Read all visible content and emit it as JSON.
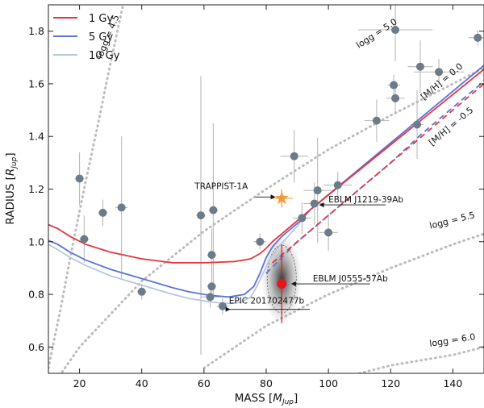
{
  "chart_data": {
    "type": "scatter",
    "xlabel": "MASS [",
    "xlabel_unit": "M",
    "xlabel_sub": "Jup",
    "xlabel_end": "]",
    "ylabel": "RADIUS [",
    "ylabel_unit": "R",
    "ylabel_sub": "Jup",
    "ylabel_end": "]",
    "xlim": [
      10,
      150
    ],
    "ylim": [
      0.5,
      1.9
    ],
    "xticks": [
      20,
      40,
      60,
      80,
      100,
      120,
      140
    ],
    "yticks": [
      0.6,
      0.8,
      1.0,
      1.2,
      1.4,
      1.6,
      1.8
    ],
    "legend": [
      {
        "label": "1 Gy",
        "color": "#e8353d"
      },
      {
        "label": "5 Gy",
        "color": "#5b73d6"
      },
      {
        "label": "10 Gy",
        "color": "#b8c6dc"
      }
    ],
    "colors": {
      "point": "#6b7b88",
      "error_bar": "#b9b9b9",
      "logg": "#bdbdbd",
      "trappist": "#f39a3c",
      "eblm_j0555": "#e8151b"
    },
    "isochrones": [
      {
        "name": "1 Gy",
        "color": "#e8353d",
        "x": [
          10,
          13,
          17,
          22,
          30,
          40,
          50,
          60,
          70,
          75,
          78,
          80,
          82,
          85,
          88,
          91,
          94
        ],
        "y": [
          1.065,
          1.05,
          1.02,
          0.99,
          0.96,
          0.935,
          0.92,
          0.92,
          0.925,
          0.935,
          0.955,
          0.975,
          1.0,
          1.03,
          1.06,
          1.09,
          1.12
        ]
      },
      {
        "name": "5 Gy",
        "color": "#5b73d6",
        "x": [
          10,
          13,
          17,
          22,
          30,
          40,
          50,
          55,
          60,
          63,
          68,
          73,
          76,
          78,
          80,
          82,
          85,
          88,
          91,
          94
        ],
        "y": [
          1.005,
          0.99,
          0.96,
          0.93,
          0.895,
          0.86,
          0.825,
          0.81,
          0.8,
          0.795,
          0.79,
          0.8,
          0.83,
          0.88,
          0.94,
          0.98,
          1.02,
          1.05,
          1.08,
          1.12
        ]
      },
      {
        "name": "10 Gy",
        "color": "#b8c6dc",
        "x": [
          10,
          13,
          17,
          22,
          30,
          40,
          50,
          55,
          60,
          63,
          68,
          72,
          75,
          77,
          79,
          81,
          84,
          87,
          90,
          94
        ],
        "y": [
          0.99,
          0.97,
          0.94,
          0.91,
          0.87,
          0.835,
          0.8,
          0.785,
          0.775,
          0.77,
          0.765,
          0.77,
          0.79,
          0.83,
          0.88,
          0.93,
          0.98,
          1.02,
          1.06,
          1.12
        ]
      }
    ],
    "metallicity_tracks": [
      {
        "label": "[M/H] = 0.0",
        "color": "#5b73d6",
        "dashed": false,
        "x": [
          94,
          150
        ],
        "y": [
          1.12,
          1.67
        ]
      },
      {
        "label": "[M/H] = 0.0",
        "color": "#e8353d",
        "dashed": false,
        "x": [
          94,
          150
        ],
        "y": [
          1.12,
          1.655
        ]
      },
      {
        "label": "[M/H] = -0.5",
        "color": "#5b73d6",
        "dashed": true,
        "x": [
          80,
          90,
          100,
          110,
          120,
          130,
          140,
          150
        ],
        "y": [
          0.88,
          1.0,
          1.1,
          1.2,
          1.3,
          1.41,
          1.51,
          1.61
        ]
      },
      {
        "label": "[M/H] = -0.5",
        "color": "#e8353d",
        "dashed": true,
        "x": [
          82,
          90,
          100,
          110,
          120,
          130,
          140,
          150
        ],
        "y": [
          0.92,
          1.0,
          1.1,
          1.2,
          1.3,
          1.4,
          1.5,
          1.6
        ]
      }
    ],
    "logg_lines": [
      {
        "label": "logg = 4.5",
        "x": [
          10,
          14,
          18,
          22,
          26,
          30,
          34
        ],
        "y": [
          0.52,
          0.75,
          1.0,
          1.23,
          1.45,
          1.68,
          1.9
        ]
      },
      {
        "label": "logg = 5.0",
        "x": [
          10,
          20,
          40,
          60,
          80,
          100,
          120,
          140,
          150
        ],
        "y": [
          0.43,
          0.6,
          0.85,
          1.04,
          1.2,
          1.35,
          1.48,
          1.6,
          1.66
        ]
      },
      {
        "label": "logg = 5.5",
        "x": [
          60,
          80,
          100,
          120,
          140,
          150
        ],
        "y": [
          0.52,
          0.68,
          0.8,
          0.9,
          0.99,
          1.03
        ]
      },
      {
        "label": "logg = 6.0",
        "x": [
          80,
          100,
          120,
          140,
          150
        ],
        "y": [
          0.4,
          0.47,
          0.53,
          0.57,
          0.6
        ]
      }
    ],
    "points": [
      {
        "x": 20,
        "y": 1.24,
        "xerr": 1.5,
        "yerr": 0.1
      },
      {
        "x": 21.5,
        "y": 1.01,
        "xerr": 1.5,
        "yerr": 0.09
      },
      {
        "x": 27.5,
        "y": 1.11,
        "xerr": 1.5,
        "yerr": 0.05
      },
      {
        "x": 33.5,
        "y": 1.13,
        "xerr": 2.0,
        "yerr": 0.27
      },
      {
        "x": 40,
        "y": 0.81,
        "xerr": 1.5,
        "yerr": 0.03
      },
      {
        "x": 59,
        "y": 1.1,
        "xerr": 1.5,
        "yerr": 0.53
      },
      {
        "x": 62.5,
        "y": 0.95,
        "xerr": 1.5,
        "yerr": 0.1
      },
      {
        "x": 63,
        "y": 1.12,
        "xerr": 1.5,
        "yerr": 0.33
      },
      {
        "x": 62.5,
        "y": 0.83,
        "xerr": 1.5,
        "yerr": 0.05
      },
      {
        "x": 62,
        "y": 0.79,
        "xerr": 3.0,
        "yerr": 0.04
      },
      {
        "x": 66,
        "y": 0.755,
        "xerr": 2.0,
        "yerr": 0.03
      },
      {
        "x": 78,
        "y": 1.0,
        "xerr": 2.0,
        "yerr": 0.03
      },
      {
        "x": 89,
        "y": 1.325,
        "xerr": 4.5,
        "yerr": 0.1
      },
      {
        "x": 91.5,
        "y": 1.09,
        "xerr": 3.0,
        "yerr": 0.06
      },
      {
        "x": 95.5,
        "y": 1.145,
        "xerr": 3.5,
        "yerr": 0.08
      },
      {
        "x": 96.5,
        "y": 1.195,
        "xerr": 4.5,
        "yerr": 0.2
      },
      {
        "x": 100,
        "y": 1.035,
        "xerr": 3.0,
        "yerr": 0.07
      },
      {
        "x": 103,
        "y": 1.215,
        "xerr": 4.5,
        "yerr": 0.05
      },
      {
        "x": 115.5,
        "y": 1.46,
        "xerr": 4.0,
        "yerr": 0.08
      },
      {
        "x": 121,
        "y": 1.595,
        "xerr": 2.0,
        "yerr": 0.04
      },
      {
        "x": 121.5,
        "y": 1.545,
        "xerr": 3.0,
        "yerr": 0.06
      },
      {
        "x": 121.5,
        "y": 1.805,
        "xerr": 12.0,
        "yerr": 0.12
      },
      {
        "x": 128.5,
        "y": 1.445,
        "xerr": 2.0,
        "yerr": 0.13
      },
      {
        "x": 129.5,
        "y": 1.665,
        "xerr": 4.0,
        "yerr": 0.1
      },
      {
        "x": 135.5,
        "y": 1.645,
        "xerr": 8.0,
        "yerr": 0.05
      },
      {
        "x": 148,
        "y": 1.775,
        "xerr": 3.0,
        "yerr": 0.03
      }
    ],
    "special_points": [
      {
        "label": "TRAPPIST-1A",
        "x": 85,
        "y": 1.165,
        "xerr": 3.5,
        "yerr": 0.035,
        "marker": "star",
        "color": "#f39a3c"
      },
      {
        "label": "EBLM J0555-57Ab",
        "x": 85,
        "y": 0.84,
        "xerr": 1.5,
        "yerr": 0.15,
        "marker": "circle",
        "color": "#e8151b"
      }
    ],
    "annotations": [
      {
        "text": "TRAPPIST-1A",
        "x": 57,
        "y": 1.2,
        "arrow_to": [
          83,
          1.17
        ]
      },
      {
        "text": "EBLM J1219-39Ab",
        "x": 100,
        "y": 1.15,
        "arrow_to": [
          97,
          1.14
        ]
      },
      {
        "text": "EBLM J0555-57Ab",
        "x": 95,
        "y": 0.85,
        "arrow_to": [
          88,
          0.84
        ]
      },
      {
        "text": "EPIC 201702477b",
        "x": 68,
        "y": 0.765,
        "arrow_to": [
          68.5,
          0.743
        ]
      }
    ]
  }
}
